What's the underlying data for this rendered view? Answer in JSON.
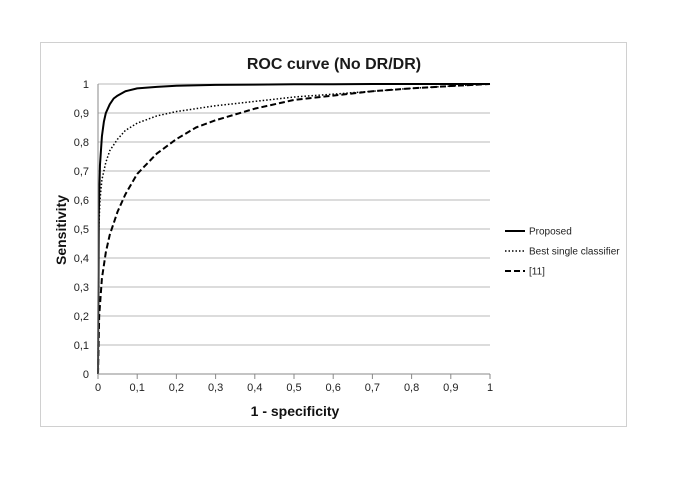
{
  "chart_data": {
    "type": "line",
    "title": "ROC curve (No DR/DR)",
    "xlabel": "1 - specificity",
    "ylabel": "Sensitivity",
    "xlim": [
      0,
      1
    ],
    "ylim": [
      0,
      1
    ],
    "x_ticks": [
      "0",
      "0,1",
      "0,2",
      "0,3",
      "0,4",
      "0,5",
      "0,6",
      "0,7",
      "0,8",
      "0,9",
      "1"
    ],
    "y_ticks": [
      "0",
      "0,1",
      "0,2",
      "0,3",
      "0,4",
      "0,5",
      "0,6",
      "0,7",
      "0,8",
      "0,9",
      "1"
    ],
    "grid": "horizontal",
    "legend": "right",
    "series": [
      {
        "name": "Proposed",
        "style": "solid",
        "color": "#000000",
        "x": [
          0,
          0.002,
          0.005,
          0.01,
          0.015,
          0.02,
          0.03,
          0.04,
          0.05,
          0.07,
          0.1,
          0.15,
          0.2,
          0.3,
          0.4,
          0.5,
          0.6,
          0.7,
          0.8,
          0.9,
          1
        ],
        "y": [
          0,
          0.55,
          0.72,
          0.82,
          0.87,
          0.9,
          0.93,
          0.95,
          0.96,
          0.975,
          0.985,
          0.99,
          0.994,
          0.997,
          0.998,
          0.999,
          0.999,
          1,
          1,
          1,
          1
        ]
      },
      {
        "name": "Best single classifier",
        "style": "dotted",
        "color": "#000000",
        "x": [
          0,
          0.002,
          0.005,
          0.01,
          0.02,
          0.03,
          0.05,
          0.07,
          0.1,
          0.15,
          0.2,
          0.25,
          0.3,
          0.4,
          0.5,
          0.6,
          0.7,
          0.8,
          0.9,
          1
        ],
        "y": [
          0,
          0.5,
          0.6,
          0.67,
          0.73,
          0.77,
          0.81,
          0.84,
          0.865,
          0.89,
          0.905,
          0.915,
          0.925,
          0.94,
          0.955,
          0.965,
          0.975,
          0.985,
          0.993,
          1
        ]
      },
      {
        "name": "[11]",
        "style": "dashed",
        "color": "#000000",
        "x": [
          0,
          0.003,
          0.01,
          0.02,
          0.03,
          0.05,
          0.07,
          0.1,
          0.15,
          0.2,
          0.25,
          0.3,
          0.35,
          0.4,
          0.5,
          0.6,
          0.7,
          0.8,
          0.9,
          1
        ],
        "y": [
          0,
          0.2,
          0.33,
          0.42,
          0.48,
          0.56,
          0.62,
          0.69,
          0.76,
          0.81,
          0.85,
          0.875,
          0.895,
          0.915,
          0.945,
          0.96,
          0.975,
          0.985,
          0.993,
          1
        ]
      }
    ]
  }
}
